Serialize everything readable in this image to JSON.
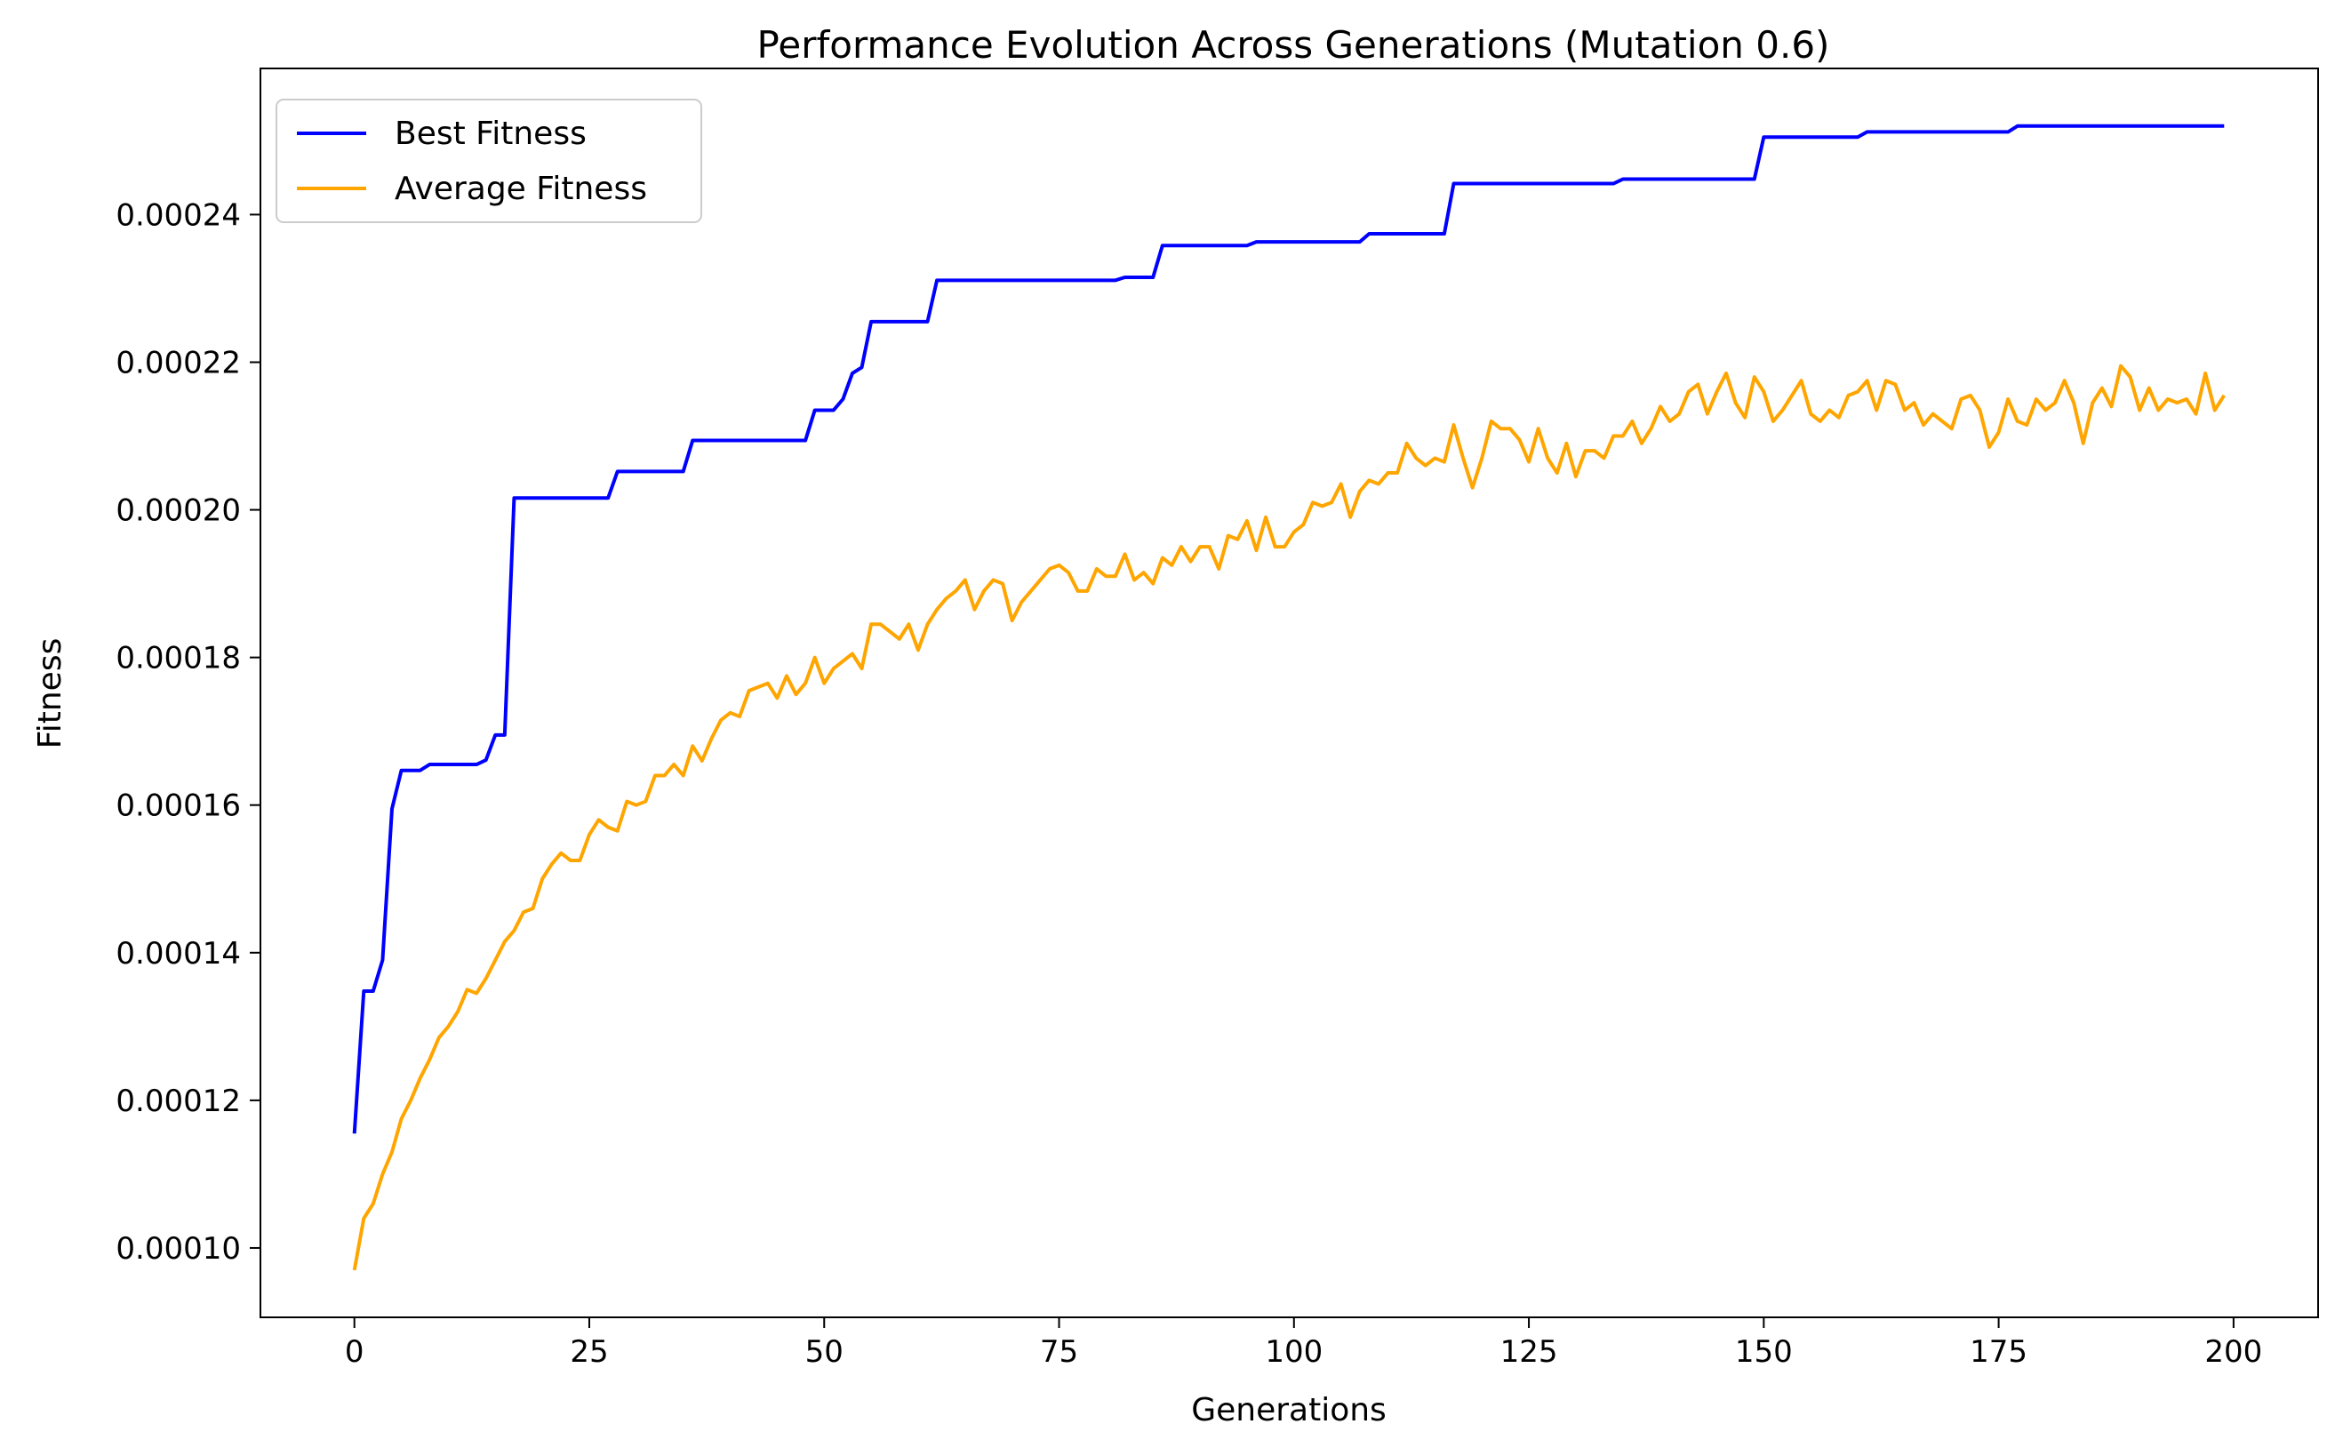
{
  "chart_data": {
    "type": "line",
    "title": "Performance Evolution Across Generations (Mutation 0.6)",
    "xlabel": "Generations",
    "ylabel": "Fitness",
    "xlim": [
      -10,
      209
    ],
    "ylim": [
      9.06e-05,
      0.0002598
    ],
    "xticks": [
      0,
      25,
      50,
      75,
      100,
      125,
      150,
      175,
      200
    ],
    "xtick_labels": [
      "0",
      "25",
      "50",
      "75",
      "100",
      "125",
      "150",
      "175",
      "200"
    ],
    "yticks": [
      0.0001,
      0.00012,
      0.00014,
      0.00016,
      0.00018,
      0.0002,
      0.00022,
      0.00024
    ],
    "ytick_labels": [
      "0.00010",
      "0.00012",
      "0.00014",
      "0.00016",
      "0.00018",
      "0.00020",
      "0.00022",
      "0.00024"
    ],
    "grid": false,
    "legend_position": "top-left",
    "series": [
      {
        "name": "Best Fitness",
        "color": "#0000ff",
        "points": [
          [
            0,
            0.0001155
          ],
          [
            1,
            0.0001348
          ],
          [
            2,
            0.0001348
          ],
          [
            3,
            0.000139
          ],
          [
            4,
            0.0001595
          ],
          [
            5,
            0.0001647
          ],
          [
            6,
            0.0001647
          ],
          [
            7,
            0.0001647
          ],
          [
            8,
            0.0001655
          ],
          [
            12,
            0.0001655
          ],
          [
            13,
            0.0001655
          ],
          [
            14,
            0.0001661
          ],
          [
            15,
            0.0001695
          ],
          [
            16,
            0.0001695
          ],
          [
            17,
            0.0002016
          ],
          [
            26,
            0.0002016
          ],
          [
            27,
            0.0002016
          ],
          [
            28,
            0.0002052
          ],
          [
            35,
            0.0002052
          ],
          [
            36,
            0.0002094
          ],
          [
            48,
            0.0002094
          ],
          [
            49,
            0.0002135
          ],
          [
            51,
            0.0002135
          ],
          [
            52,
            0.000215
          ],
          [
            53,
            0.0002185
          ],
          [
            54,
            0.0002193
          ],
          [
            55,
            0.0002255
          ],
          [
            61,
            0.0002255
          ],
          [
            62,
            0.0002311
          ],
          [
            81,
            0.0002311
          ],
          [
            82,
            0.0002315
          ],
          [
            85,
            0.0002315
          ],
          [
            86,
            0.0002358
          ],
          [
            95,
            0.0002358
          ],
          [
            96,
            0.0002363
          ],
          [
            107,
            0.0002363
          ],
          [
            108,
            0.0002374
          ],
          [
            116,
            0.0002374
          ],
          [
            117,
            0.0002442
          ],
          [
            134,
            0.0002442
          ],
          [
            135,
            0.0002448
          ],
          [
            149,
            0.0002448
          ],
          [
            150,
            0.0002505
          ],
          [
            160,
            0.0002505
          ],
          [
            161,
            0.0002512
          ],
          [
            176,
            0.0002512
          ],
          [
            177,
            0.000252
          ],
          [
            199,
            0.000252
          ]
        ]
      },
      {
        "name": "Average Fitness",
        "color": "#ffa500",
        "points": [
          [
            0,
            9.7e-05
          ],
          [
            1,
            0.000104
          ],
          [
            2,
            0.000106
          ],
          [
            3,
            0.00011
          ],
          [
            4,
            0.000113
          ],
          [
            5,
            0.0001175
          ],
          [
            6,
            0.00012
          ],
          [
            7,
            0.000123
          ],
          [
            8,
            0.0001255
          ],
          [
            9,
            0.0001285
          ],
          [
            10,
            0.00013
          ],
          [
            11,
            0.000132
          ],
          [
            12,
            0.000135
          ],
          [
            13,
            0.0001345
          ],
          [
            14,
            0.0001365
          ],
          [
            15,
            0.000139
          ],
          [
            16,
            0.0001415
          ],
          [
            17,
            0.000143
          ],
          [
            18,
            0.0001455
          ],
          [
            19,
            0.000146
          ],
          [
            20,
            0.00015
          ],
          [
            21,
            0.000152
          ],
          [
            22,
            0.0001535
          ],
          [
            23,
            0.0001525
          ],
          [
            24,
            0.0001525
          ],
          [
            25,
            0.000156
          ],
          [
            26,
            0.000158
          ],
          [
            27,
            0.000157
          ],
          [
            28,
            0.0001565
          ],
          [
            29,
            0.0001605
          ],
          [
            30,
            0.00016
          ],
          [
            31,
            0.0001605
          ],
          [
            32,
            0.000164
          ],
          [
            33,
            0.000164
          ],
          [
            34,
            0.0001655
          ],
          [
            35,
            0.000164
          ],
          [
            36,
            0.000168
          ],
          [
            37,
            0.000166
          ],
          [
            38,
            0.000169
          ],
          [
            39,
            0.0001715
          ],
          [
            40,
            0.0001725
          ],
          [
            41,
            0.000172
          ],
          [
            42,
            0.0001755
          ],
          [
            43,
            0.000176
          ],
          [
            44,
            0.0001765
          ],
          [
            45,
            0.0001745
          ],
          [
            46,
            0.0001775
          ],
          [
            47,
            0.000175
          ],
          [
            48,
            0.0001765
          ],
          [
            49,
            0.00018
          ],
          [
            50,
            0.0001765
          ],
          [
            51,
            0.0001785
          ],
          [
            52,
            0.0001795
          ],
          [
            53,
            0.0001805
          ],
          [
            54,
            0.0001785
          ],
          [
            55,
            0.0001845
          ],
          [
            56,
            0.0001845
          ],
          [
            57,
            0.0001835
          ],
          [
            58,
            0.0001825
          ],
          [
            59,
            0.0001845
          ],
          [
            60,
            0.000181
          ],
          [
            61,
            0.0001845
          ],
          [
            62,
            0.0001865
          ],
          [
            63,
            0.000188
          ],
          [
            64,
            0.000189
          ],
          [
            65,
            0.0001905
          ],
          [
            66,
            0.0001865
          ],
          [
            67,
            0.000189
          ],
          [
            68,
            0.0001905
          ],
          [
            69,
            0.00019
          ],
          [
            70,
            0.000185
          ],
          [
            71,
            0.0001875
          ],
          [
            72,
            0.000189
          ],
          [
            73,
            0.0001905
          ],
          [
            74,
            0.000192
          ],
          [
            75,
            0.0001925
          ],
          [
            76,
            0.0001915
          ],
          [
            77,
            0.000189
          ],
          [
            78,
            0.000189
          ],
          [
            79,
            0.000192
          ],
          [
            80,
            0.000191
          ],
          [
            81,
            0.000191
          ],
          [
            82,
            0.000194
          ],
          [
            83,
            0.0001905
          ],
          [
            84,
            0.0001915
          ],
          [
            85,
            0.00019
          ],
          [
            86,
            0.0001935
          ],
          [
            87,
            0.0001925
          ],
          [
            88,
            0.000195
          ],
          [
            89,
            0.000193
          ],
          [
            90,
            0.000195
          ],
          [
            91,
            0.000195
          ],
          [
            92,
            0.000192
          ],
          [
            93,
            0.0001965
          ],
          [
            94,
            0.000196
          ],
          [
            95,
            0.0001985
          ],
          [
            96,
            0.0001945
          ],
          [
            97,
            0.000199
          ],
          [
            98,
            0.000195
          ],
          [
            99,
            0.000195
          ],
          [
            100,
            0.000197
          ],
          [
            101,
            0.000198
          ],
          [
            102,
            0.000201
          ],
          [
            103,
            0.0002005
          ],
          [
            104,
            0.000201
          ],
          [
            105,
            0.0002035
          ],
          [
            106,
            0.000199
          ],
          [
            107,
            0.0002025
          ],
          [
            108,
            0.000204
          ],
          [
            109,
            0.0002035
          ],
          [
            110,
            0.000205
          ],
          [
            111,
            0.000205
          ],
          [
            112,
            0.000209
          ],
          [
            113,
            0.000207
          ],
          [
            114,
            0.000206
          ],
          [
            115,
            0.000207
          ],
          [
            116,
            0.0002065
          ],
          [
            117,
            0.0002115
          ],
          [
            118,
            0.000207
          ],
          [
            119,
            0.000203
          ],
          [
            120,
            0.000207
          ],
          [
            121,
            0.000212
          ],
          [
            122,
            0.000211
          ],
          [
            123,
            0.000211
          ],
          [
            124,
            0.0002095
          ],
          [
            125,
            0.0002065
          ],
          [
            126,
            0.000211
          ],
          [
            127,
            0.000207
          ],
          [
            128,
            0.000205
          ],
          [
            129,
            0.000209
          ],
          [
            130,
            0.0002045
          ],
          [
            131,
            0.000208
          ],
          [
            132,
            0.000208
          ],
          [
            133,
            0.000207
          ],
          [
            134,
            0.00021
          ],
          [
            135,
            0.00021
          ],
          [
            136,
            0.000212
          ],
          [
            137,
            0.000209
          ],
          [
            138,
            0.000211
          ],
          [
            139,
            0.000214
          ],
          [
            140,
            0.000212
          ],
          [
            141,
            0.000213
          ],
          [
            142,
            0.000216
          ],
          [
            143,
            0.000217
          ],
          [
            144,
            0.000213
          ],
          [
            145,
            0.000216
          ],
          [
            146,
            0.0002185
          ],
          [
            147,
            0.0002145
          ],
          [
            148,
            0.0002125
          ],
          [
            149,
            0.000218
          ],
          [
            150,
            0.000216
          ],
          [
            151,
            0.000212
          ],
          [
            152,
            0.0002135
          ],
          [
            153,
            0.0002155
          ],
          [
            154,
            0.0002175
          ],
          [
            155,
            0.000213
          ],
          [
            156,
            0.000212
          ],
          [
            157,
            0.0002135
          ],
          [
            158,
            0.0002125
          ],
          [
            159,
            0.0002155
          ],
          [
            160,
            0.000216
          ],
          [
            161,
            0.0002175
          ],
          [
            162,
            0.0002135
          ],
          [
            163,
            0.0002175
          ],
          [
            164,
            0.000217
          ],
          [
            165,
            0.0002135
          ],
          [
            166,
            0.0002145
          ],
          [
            167,
            0.0002115
          ],
          [
            168,
            0.000213
          ],
          [
            169,
            0.000212
          ],
          [
            170,
            0.000211
          ],
          [
            171,
            0.000215
          ],
          [
            172,
            0.0002155
          ],
          [
            173,
            0.0002135
          ],
          [
            174,
            0.0002085
          ],
          [
            175,
            0.0002105
          ],
          [
            176,
            0.000215
          ],
          [
            177,
            0.000212
          ],
          [
            178,
            0.0002115
          ],
          [
            179,
            0.000215
          ],
          [
            180,
            0.0002135
          ],
          [
            181,
            0.0002145
          ],
          [
            182,
            0.0002175
          ],
          [
            183,
            0.0002145
          ],
          [
            184,
            0.000209
          ],
          [
            185,
            0.0002145
          ],
          [
            186,
            0.0002165
          ],
          [
            187,
            0.000214
          ],
          [
            188,
            0.0002195
          ],
          [
            189,
            0.000218
          ],
          [
            190,
            0.0002135
          ],
          [
            191,
            0.0002165
          ],
          [
            192,
            0.0002135
          ],
          [
            193,
            0.000215
          ],
          [
            194,
            0.0002145
          ],
          [
            195,
            0.000215
          ],
          [
            196,
            0.000213
          ],
          [
            197,
            0.0002185
          ],
          [
            198,
            0.0002135
          ],
          [
            199,
            0.0002155
          ]
        ]
      }
    ]
  }
}
